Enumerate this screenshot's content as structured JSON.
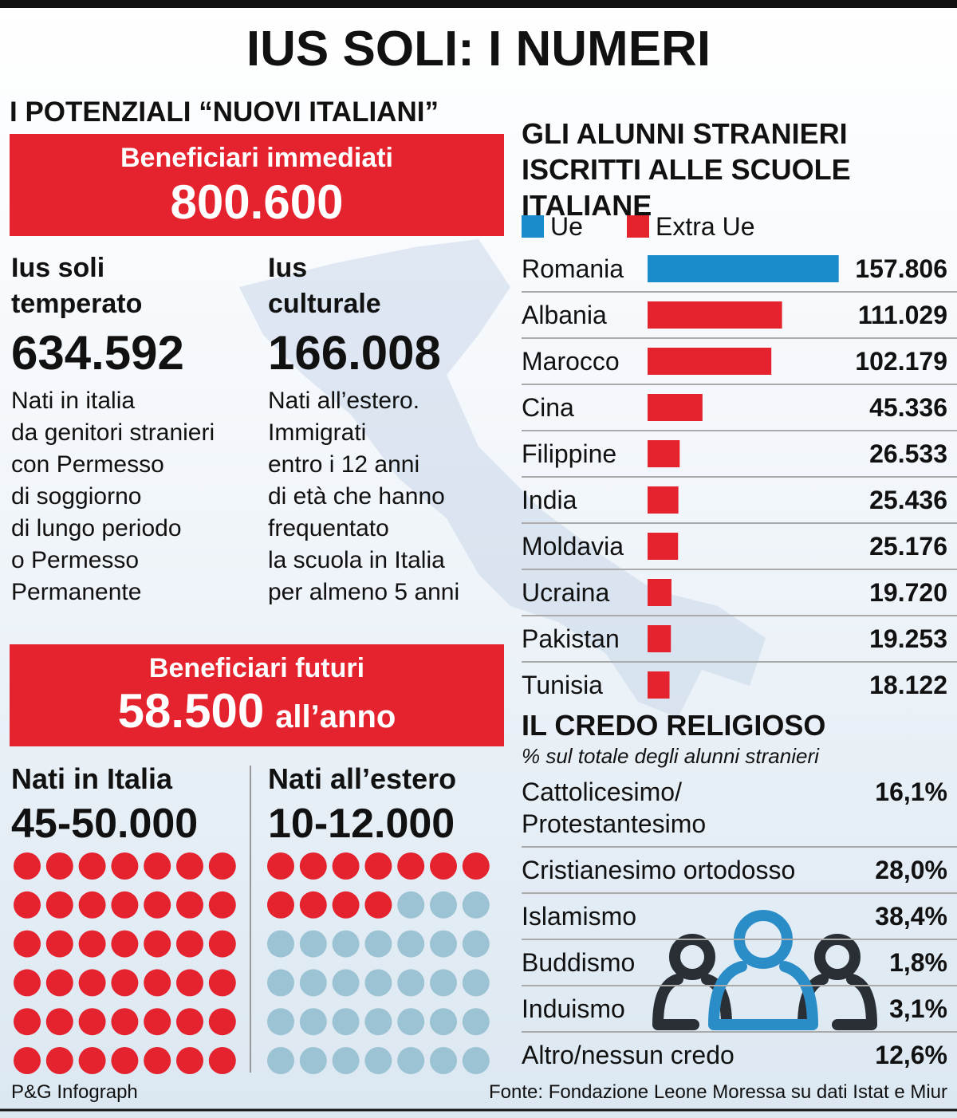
{
  "header": {
    "title": "IUS SOLI: I NUMERI"
  },
  "left": {
    "heading": "I POTENZIALI “NUOVI ITALIANI”",
    "immediate": {
      "label": "Beneficiari immediati",
      "total": "800.600",
      "columns": [
        {
          "title": [
            "Ius soli",
            "temperato"
          ],
          "number": "634.592",
          "text": [
            "Nati in italia",
            "da genitori stranieri",
            "con Permesso",
            "di soggiorno",
            "di lungo periodo",
            "o Permesso",
            "Permanente"
          ]
        },
        {
          "title": [
            "Ius",
            "culturale"
          ],
          "number": "166.008",
          "text": [
            "Nati all’estero.",
            "Immigrati",
            "entro i 12 anni",
            "di età che hanno",
            "frequentato",
            "la scuola in Italia",
            "per almeno 5 anni"
          ]
        }
      ]
    },
    "future": {
      "label": "Beneficiari futuri",
      "total": "58.500",
      "unit": "all’anno",
      "columns": [
        {
          "title": "Nati in Italia",
          "number": "45-50.000"
        },
        {
          "title": "Nati all’estero",
          "number": "10-12.000"
        }
      ]
    }
  },
  "chart_data": {
    "type": "bar",
    "orientation": "horizontal",
    "title": "GLI ALUNNI STRANIERI ISCRITTI ALLE SCUOLE ITALIANE",
    "categories": [
      "Romania",
      "Albania",
      "Marocco",
      "Cina",
      "Filippine",
      "India",
      "Moldavia",
      "Ucraina",
      "Pakistan",
      "Tunisia"
    ],
    "series": [
      {
        "name": "Ue",
        "color": "#1a8ccc",
        "values": [
          157806,
          null,
          null,
          null,
          null,
          null,
          null,
          null,
          null,
          null
        ],
        "value_labels": [
          "157.806",
          null,
          null,
          null,
          null,
          null,
          null,
          null,
          null,
          null
        ]
      },
      {
        "name": "Extra Ue",
        "color": "#e4232e",
        "values": [
          null,
          111029,
          102179,
          45336,
          26533,
          25436,
          25176,
          19720,
          19253,
          18122
        ],
        "value_labels": [
          null,
          "111.029",
          "102.179",
          "45.336",
          "26.533",
          "25.436",
          "25.176",
          "19.720",
          "19.253",
          "18.122"
        ]
      }
    ],
    "xlim": [
      0,
      160000
    ]
  },
  "religion": {
    "title": "IL CREDO RELIGIOSO",
    "subtitle": "% sul totale degli alunni stranieri",
    "items": [
      {
        "name": [
          "Cattolicesimo/",
          "Protestantesimo"
        ],
        "share": "16,1%"
      },
      {
        "name": [
          "Cristianesimo ortodosso"
        ],
        "share": "28,0%"
      },
      {
        "name": [
          "Islamismo"
        ],
        "share": "38,4%"
      },
      {
        "name": [
          "Buddismo"
        ],
        "share": "1,8%"
      },
      {
        "name": [
          "Induismo"
        ],
        "share": "3,1%"
      },
      {
        "name": [
          "Altro/nessun credo"
        ],
        "share": "12,6%"
      }
    ]
  },
  "footer": {
    "credit": "P&G Infograph",
    "source": "Fonte: Fondazione Leone Moressa su dati Istat e Miur"
  }
}
